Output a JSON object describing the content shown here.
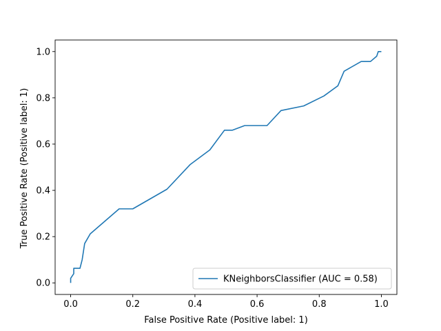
{
  "chart_data": {
    "type": "line",
    "title": "",
    "xlabel": "False Positive Rate (Positive label: 1)",
    "ylabel": "True Positive Rate (Positive label: 1)",
    "xlim": [
      -0.05,
      1.05
    ],
    "ylim": [
      -0.05,
      1.05
    ],
    "x_ticks": [
      0.0,
      0.2,
      0.4,
      0.6,
      0.8,
      1.0
    ],
    "x_tick_labels": [
      "0.0",
      "0.2",
      "0.4",
      "0.6",
      "0.8",
      "1.0"
    ],
    "y_ticks": [
      0.0,
      0.2,
      0.4,
      0.6,
      0.8,
      1.0
    ],
    "y_tick_labels": [
      "0.0",
      "0.2",
      "0.4",
      "0.6",
      "0.8",
      "1.0"
    ],
    "grid": false,
    "legend_position": "lower-right",
    "series": [
      {
        "name": "KNeighborsClassifier (AUC = 0.58)",
        "color": "#1f77b4",
        "x": [
          0.0,
          0.0,
          0.01,
          0.01,
          0.03,
          0.037,
          0.045,
          0.063,
          0.156,
          0.2,
          0.31,
          0.385,
          0.448,
          0.495,
          0.52,
          0.56,
          0.632,
          0.677,
          0.75,
          0.815,
          0.86,
          0.88,
          0.935,
          0.965,
          0.985,
          0.99,
          1.0
        ],
        "y": [
          0.0,
          0.02,
          0.04,
          0.063,
          0.063,
          0.1,
          0.17,
          0.212,
          0.32,
          0.32,
          0.405,
          0.512,
          0.575,
          0.66,
          0.66,
          0.68,
          0.68,
          0.745,
          0.765,
          0.808,
          0.852,
          0.915,
          0.957,
          0.957,
          0.98,
          1.0,
          1.0
        ]
      }
    ]
  }
}
